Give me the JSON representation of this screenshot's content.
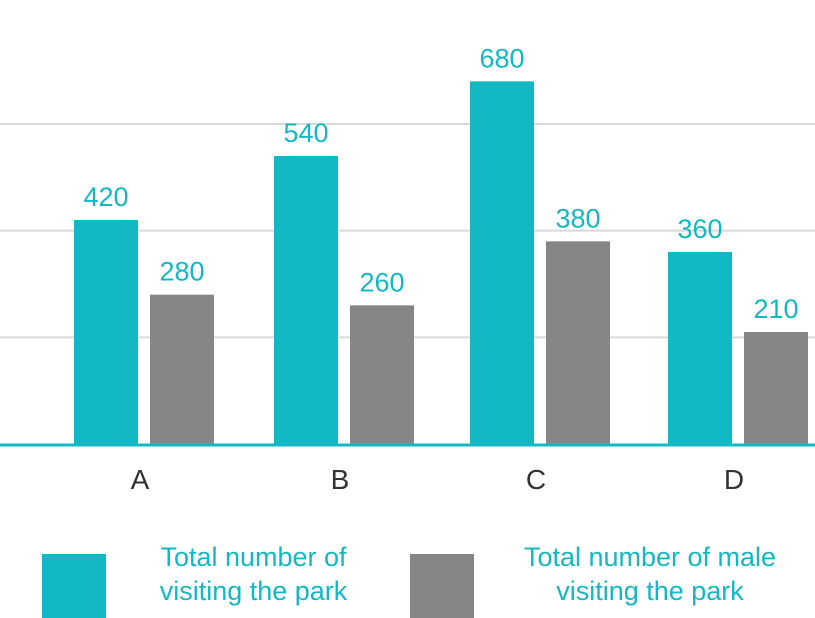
{
  "colors": {
    "total": "#12b8c4",
    "male": "#868686",
    "grid": "#d9d9d9",
    "axis": "#12b8c4"
  },
  "chart_data": {
    "type": "bar",
    "categories": [
      "A",
      "B",
      "C",
      "D"
    ],
    "series": [
      {
        "name": "Total number of\nvisiting the park",
        "values": [
          420,
          540,
          680,
          360
        ]
      },
      {
        "name": "Total number of male\nvisiting the park",
        "values": [
          280,
          260,
          380,
          210
        ]
      }
    ],
    "ylim": [
      0,
      750
    ],
    "grid": true,
    "legend": "bottom"
  }
}
